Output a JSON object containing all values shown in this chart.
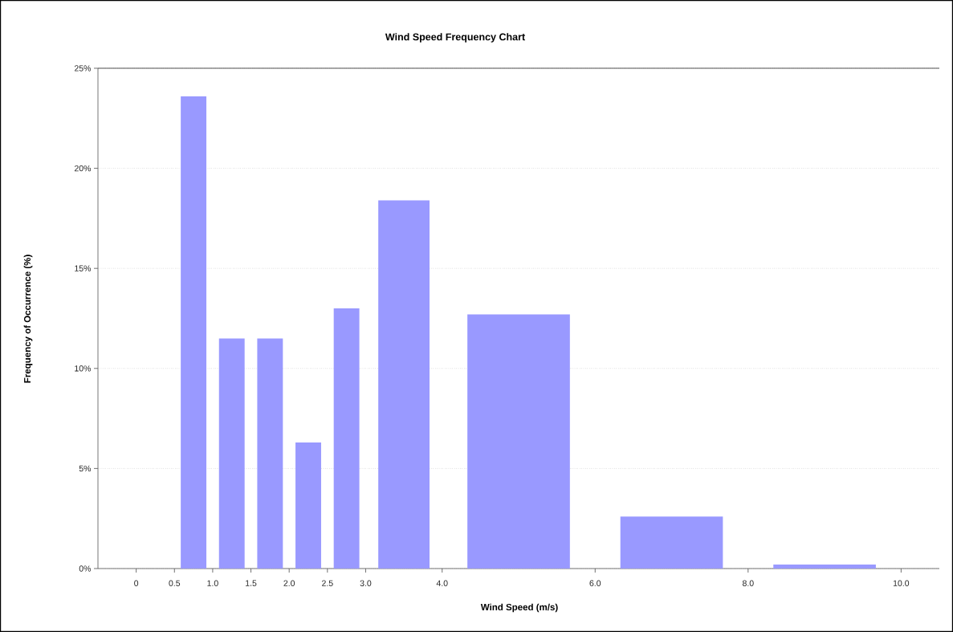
{
  "chart_data": {
    "type": "histogram",
    "title": "Wind Speed Frequency Chart",
    "xlabel": "Wind Speed (m/s)",
    "ylabel": "Frequency of Occurrence (%)",
    "bins": [
      0.5,
      1.0,
      1.5,
      2.0,
      2.5,
      3.0,
      4.0,
      6.0,
      8.0,
      10.0
    ],
    "values": [
      23.6,
      11.5,
      11.5,
      6.3,
      13.0,
      18.4,
      12.7,
      2.6,
      0.2
    ],
    "color": "#9999ff",
    "xticks": [
      0,
      0.5,
      {
        "value": 1.0,
        "label": "1.0"
      },
      1.5,
      {
        "value": 2.0,
        "label": "2.0"
      },
      2.5,
      {
        "value": 3.0,
        "label": "3.0"
      },
      {
        "value": 4.0,
        "label": "4.0"
      },
      {
        "value": 6.0,
        "label": "6.0"
      },
      {
        "value": 8.0,
        "label": "8.0"
      },
      {
        "value": 10.0,
        "label": "10.0"
      }
    ],
    "xlim": [
      -0.5,
      10.5
    ],
    "ylim": [
      0,
      25
    ],
    "yticks": [
      {
        "value": 0,
        "label": "0%"
      },
      {
        "value": 5,
        "label": "5%"
      },
      {
        "value": 10,
        "label": "10%"
      },
      {
        "value": 15,
        "label": "15%"
      },
      {
        "value": 20,
        "label": "20%"
      },
      {
        "value": 25,
        "label": "25%"
      }
    ],
    "grid": "y"
  }
}
